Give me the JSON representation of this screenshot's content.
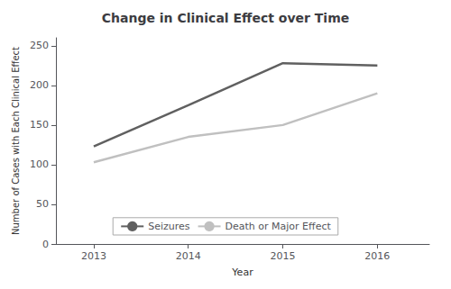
{
  "chart_data": {
    "type": "line",
    "title": "Change in Clinical Effect over Time",
    "x_label": "Year",
    "y_label": "Number of Cases with Each Clinical Effect",
    "x": [
      2013,
      2014,
      2015,
      2016
    ],
    "series": [
      {
        "name": "Seizures",
        "color": "#606060",
        "values": [
          123,
          175,
          228,
          225
        ]
      },
      {
        "name": "Death or Major Effect",
        "color": "#c0c0c0",
        "values": [
          103,
          135,
          150,
          190
        ]
      }
    ],
    "xlim": [
      2012.6,
      2016.55
    ],
    "xticks": [
      2013,
      2014,
      2015,
      2016
    ],
    "ylim": [
      0,
      260
    ],
    "yticks": [
      0,
      50,
      100,
      150,
      200,
      250
    ],
    "grid": false,
    "legend": "lower center"
  }
}
